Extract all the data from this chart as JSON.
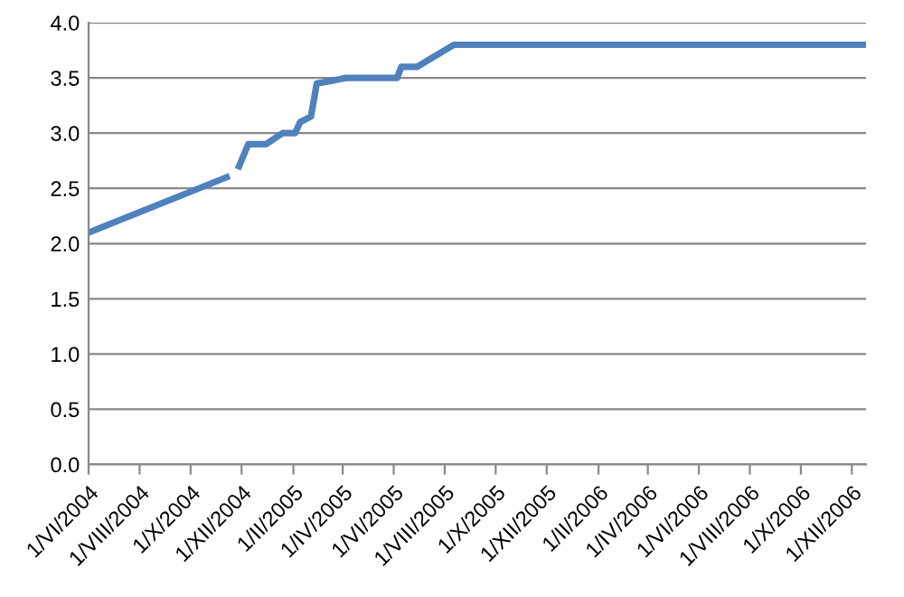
{
  "chart_data": {
    "type": "line",
    "x": [
      "2004-06-01",
      "2004-11-13",
      "2004-11-20",
      "2004-11-28",
      "2004-12-09",
      "2004-12-30",
      "2005-01-19",
      "2005-02-03",
      "2005-02-09",
      "2005-02-22",
      "2005-03-01",
      "2005-03-23",
      "2005-04-05",
      "2005-06-05",
      "2005-06-10",
      "2005-06-29",
      "2005-07-21",
      "2005-08-12",
      "2006-12-18"
    ],
    "series": [
      {
        "color": "#4f81bd",
        "values": [
          2.1,
          2.6,
          null,
          2.7,
          2.9,
          2.9,
          3.0,
          3.0,
          3.1,
          3.15,
          3.45,
          3.48,
          3.5,
          3.5,
          3.6,
          3.6,
          3.7,
          3.8,
          3.8
        ]
      }
    ],
    "xlim": [
      "2004-06-01",
      "2006-12-18"
    ],
    "xticks": [
      {
        "value": "2004-06-01",
        "label": "1/VI/2004"
      },
      {
        "value": "2004-08-01",
        "label": "1/VIII/2004"
      },
      {
        "value": "2004-10-01",
        "label": "1/X/2004"
      },
      {
        "value": "2004-12-01",
        "label": "1/XII/2004"
      },
      {
        "value": "2005-02-01",
        "label": "1/II/2005"
      },
      {
        "value": "2005-04-01",
        "label": "1/IV/2005"
      },
      {
        "value": "2005-06-01",
        "label": "1/VI/2005"
      },
      {
        "value": "2005-08-01",
        "label": "1/VIII/2005"
      },
      {
        "value": "2005-10-01",
        "label": "1/X/2005"
      },
      {
        "value": "2005-12-01",
        "label": "1/XII/2005"
      },
      {
        "value": "2006-02-01",
        "label": "1/II/2006"
      },
      {
        "value": "2006-04-01",
        "label": "1/IV/2006"
      },
      {
        "value": "2006-06-01",
        "label": "1/VI/2006"
      },
      {
        "value": "2006-08-01",
        "label": "1/VIII/2006"
      },
      {
        "value": "2006-10-01",
        "label": "1/X/2006"
      },
      {
        "value": "2006-12-01",
        "label": "1/XII/2006"
      }
    ],
    "ylim": [
      0,
      4
    ],
    "yticks": [
      {
        "value": 0,
        "label": "0.0"
      },
      {
        "value": 0.5,
        "label": "0.5"
      },
      {
        "value": 1,
        "label": "1.0"
      },
      {
        "value": 1.5,
        "label": "1.5"
      },
      {
        "value": 2,
        "label": "2.0"
      },
      {
        "value": 2.5,
        "label": "2.5"
      },
      {
        "value": 3,
        "label": "3.0"
      },
      {
        "value": 3.5,
        "label": "3.5"
      },
      {
        "value": 4,
        "label": "4.0"
      }
    ],
    "grid": "y",
    "legend": false,
    "marker": "none",
    "line_style": "solid"
  }
}
